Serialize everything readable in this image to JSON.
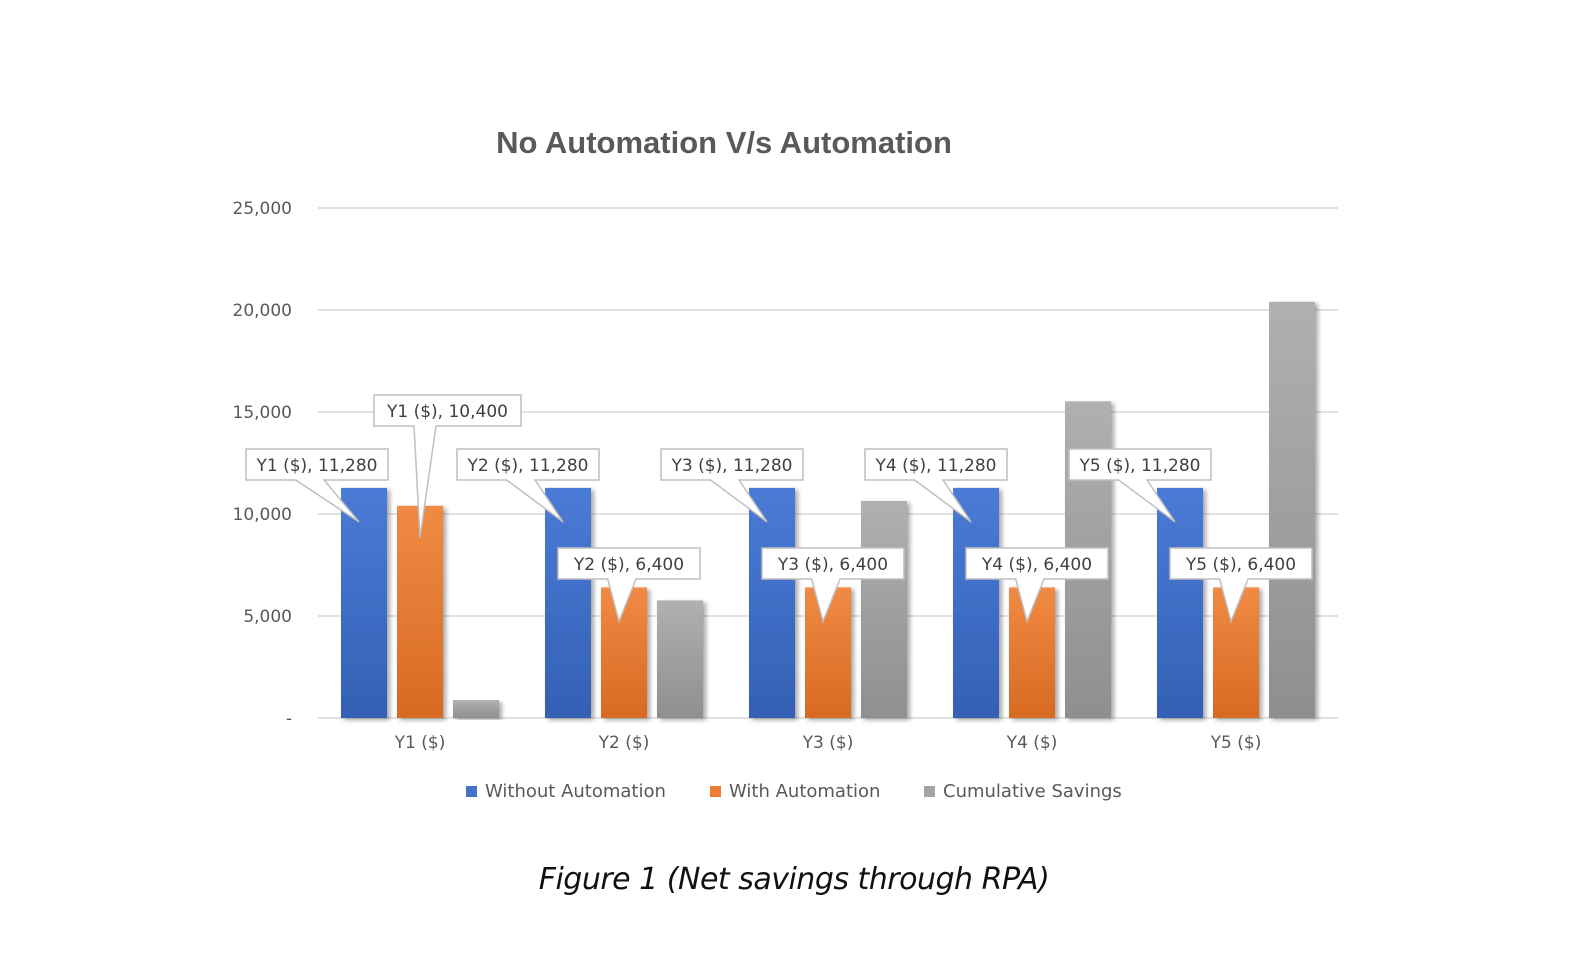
{
  "chart_data": {
    "type": "bar",
    "title": "No Automation V/s Automation",
    "categories": [
      "Y1 ($)",
      "Y2 ($)",
      "Y3 ($)",
      "Y4 ($)",
      "Y5 ($)"
    ],
    "series": [
      {
        "name": "Without Automation",
        "color": "#4472C4",
        "values": [
          11280,
          11280,
          11280,
          11280,
          11280
        ]
      },
      {
        "name": "With Automation",
        "color": "#ED7D31",
        "values": [
          10400,
          6400,
          6400,
          6400,
          6400
        ]
      },
      {
        "name": "Cumulative Savings",
        "color": "#A5A5A5",
        "values": [
          880,
          5760,
          10640,
          15520,
          20400
        ]
      }
    ],
    "ylim": [
      0,
      25000
    ],
    "yticks": [
      0,
      5000,
      10000,
      15000,
      20000,
      25000
    ],
    "ytick_labels": [
      "-",
      "5,000",
      "10,000",
      "15,000",
      "20,000",
      "25,000"
    ],
    "grid": true,
    "legend": "bottom",
    "data_labels": [
      {
        "series": 0,
        "category": 0,
        "text": "Y1 ($), 11,280"
      },
      {
        "series": 1,
        "category": 0,
        "text": "Y1 ($), 10,400"
      },
      {
        "series": 0,
        "category": 1,
        "text": "Y2 ($), 11,280"
      },
      {
        "series": 1,
        "category": 1,
        "text": "Y2 ($), 6,400"
      },
      {
        "series": 0,
        "category": 2,
        "text": "Y3 ($), 11,280"
      },
      {
        "series": 1,
        "category": 2,
        "text": "Y3 ($), 6,400"
      },
      {
        "series": 0,
        "category": 3,
        "text": "Y4 ($), 11,280"
      },
      {
        "series": 1,
        "category": 3,
        "text": "Y4 ($), 6,400"
      },
      {
        "series": 0,
        "category": 4,
        "text": "Y5 ($), 11,280"
      },
      {
        "series": 1,
        "category": 4,
        "text": "Y5 ($), 6,400"
      }
    ]
  },
  "caption": "Figure 1 (Net savings through RPA)"
}
